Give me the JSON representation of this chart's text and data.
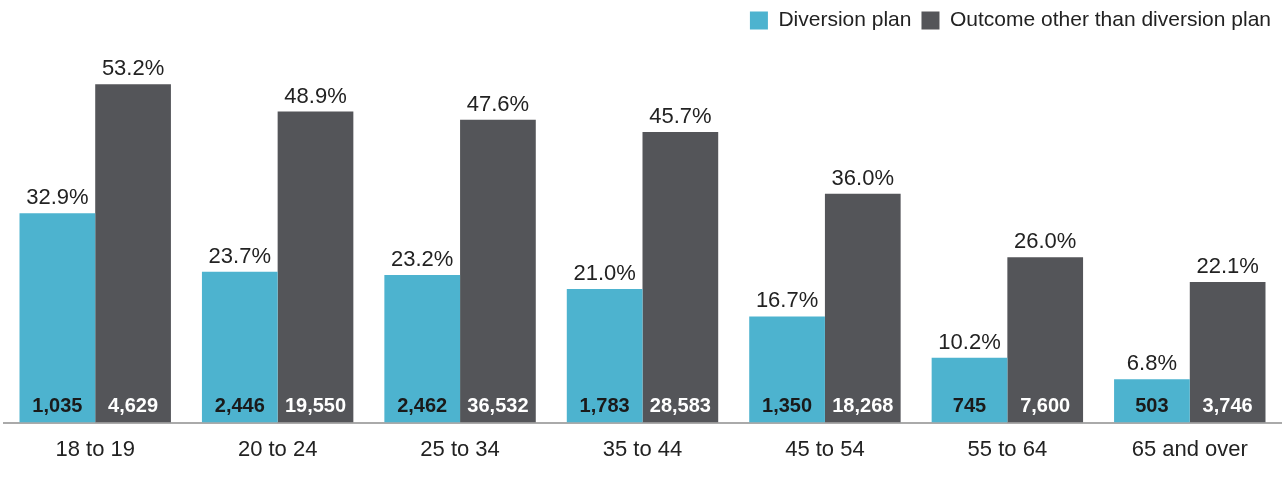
{
  "chart_data": {
    "type": "bar",
    "categories": [
      "18 to 19",
      "20 to 24",
      "25 to 34",
      "35 to 44",
      "45 to 54",
      "55 to 64",
      "65 and over"
    ],
    "series": [
      {
        "name": "Diversion plan",
        "color": "#4db3cf",
        "values": [
          32.9,
          23.7,
          23.2,
          21.0,
          16.7,
          10.2,
          6.8
        ],
        "value_labels": [
          "32.9%",
          "23.7%",
          "23.2%",
          "21.0%",
          "16.7%",
          "10.2%",
          "6.8%"
        ]
      },
      {
        "name": "Outcome other than diversion plan",
        "color": "#545559",
        "values": [
          53.2,
          48.9,
          47.6,
          45.7,
          36.0,
          26.0,
          22.1
        ],
        "value_labels": [
          "53.2%",
          "48.9%",
          "47.6%",
          "45.7%",
          "36.0%",
          "26.0%",
          "22.1%"
        ]
      }
    ],
    "tick_labels": "x",
    "grid": false,
    "legend": "top right",
    "annotations": [
      "1,035",
      "4,629",
      "2,446",
      "19,550",
      "2,462",
      "36,532",
      "1,783",
      "28,583",
      "1,350",
      "18,268",
      "745",
      "7,600",
      "503",
      "3,746"
    ]
  }
}
